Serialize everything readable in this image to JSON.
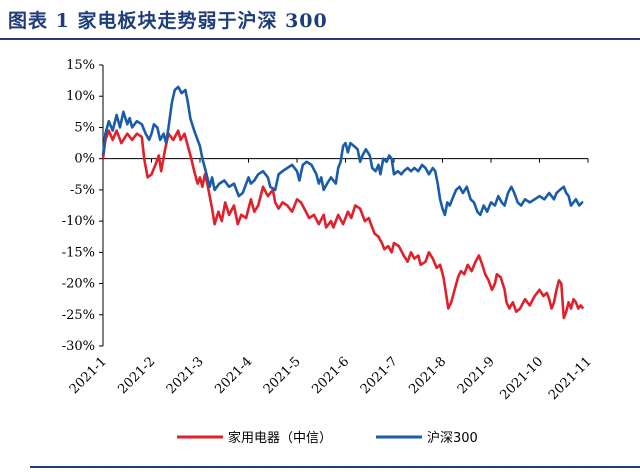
{
  "header": {
    "title": "图表 1  家电板块走势弱于沪深 300"
  },
  "chart_data": {
    "type": "line",
    "title": "图表 1  家电板块走势弱于沪深 300",
    "xlabel": "",
    "ylabel": "",
    "ylim": [
      -30,
      15
    ],
    "yticks": [
      "15%",
      "10%",
      "5%",
      "0%",
      "-5%",
      "-10%",
      "-15%",
      "-20%",
      "-25%",
      "-30%"
    ],
    "x_ticks": [
      "2021-1",
      "2021-2",
      "2021-3",
      "2021-4",
      "2021-5",
      "2021-6",
      "2021-7",
      "2021-8",
      "2021-9",
      "2021-10",
      "2021-11"
    ],
    "x_range": [
      0,
      10.2
    ],
    "legend_position": "bottom",
    "grid": false,
    "series": [
      {
        "name": "家用电器（中信）",
        "color": "#e0202a",
        "points": [
          [
            0.0,
            0
          ],
          [
            0.05,
            3
          ],
          [
            0.12,
            4.5
          ],
          [
            0.2,
            3
          ],
          [
            0.28,
            4.5
          ],
          [
            0.38,
            2.5
          ],
          [
            0.5,
            4
          ],
          [
            0.6,
            3
          ],
          [
            0.7,
            4
          ],
          [
            0.8,
            3.5
          ],
          [
            0.85,
            0
          ],
          [
            0.92,
            -3
          ],
          [
            1.0,
            -2.5
          ],
          [
            1.08,
            -1
          ],
          [
            1.15,
            0.5
          ],
          [
            1.2,
            -2
          ],
          [
            1.28,
            1.5
          ],
          [
            1.35,
            4
          ],
          [
            1.45,
            3
          ],
          [
            1.55,
            4.5
          ],
          [
            1.6,
            3
          ],
          [
            1.68,
            4
          ],
          [
            1.75,
            2
          ],
          [
            1.82,
            0
          ],
          [
            1.88,
            -2
          ],
          [
            1.95,
            -4
          ],
          [
            2.0,
            -3
          ],
          [
            2.05,
            -4.5
          ],
          [
            2.1,
            -2.5
          ],
          [
            2.15,
            -4
          ],
          [
            2.2,
            -6
          ],
          [
            2.25,
            -8
          ],
          [
            2.3,
            -10.5
          ],
          [
            2.38,
            -8.5
          ],
          [
            2.45,
            -10
          ],
          [
            2.52,
            -7
          ],
          [
            2.6,
            -9
          ],
          [
            2.7,
            -7.5
          ],
          [
            2.78,
            -10.5
          ],
          [
            2.85,
            -9
          ],
          [
            2.95,
            -9.5
          ],
          [
            3.05,
            -6.5
          ],
          [
            3.12,
            -8.5
          ],
          [
            3.2,
            -7.5
          ],
          [
            3.3,
            -4.5
          ],
          [
            3.4,
            -6
          ],
          [
            3.5,
            -5
          ],
          [
            3.55,
            -7
          ],
          [
            3.62,
            -8
          ],
          [
            3.7,
            -7
          ],
          [
            3.8,
            -7.5
          ],
          [
            3.9,
            -8.5
          ],
          [
            4.0,
            -6.5
          ],
          [
            4.08,
            -7
          ],
          [
            4.15,
            -8
          ],
          [
            4.25,
            -9.5
          ],
          [
            4.35,
            -9
          ],
          [
            4.45,
            -10.5
          ],
          [
            4.55,
            -9
          ],
          [
            4.6,
            -11
          ],
          [
            4.7,
            -10
          ],
          [
            4.75,
            -11
          ],
          [
            4.85,
            -9
          ],
          [
            4.95,
            -10.5
          ],
          [
            5.05,
            -8.5
          ],
          [
            5.12,
            -9.5
          ],
          [
            5.2,
            -7.5
          ],
          [
            5.3,
            -8
          ],
          [
            5.4,
            -10
          ],
          [
            5.48,
            -9.5
          ],
          [
            5.55,
            -11
          ],
          [
            5.6,
            -12
          ],
          [
            5.68,
            -12.5
          ],
          [
            5.75,
            -13.5
          ],
          [
            5.8,
            -14.5
          ],
          [
            5.88,
            -14
          ],
          [
            5.95,
            -15
          ],
          [
            6.0,
            -13.5
          ],
          [
            6.1,
            -14
          ],
          [
            6.2,
            -15.5
          ],
          [
            6.28,
            -16.5
          ],
          [
            6.35,
            -15
          ],
          [
            6.42,
            -16
          ],
          [
            6.5,
            -15.5
          ],
          [
            6.55,
            -17
          ],
          [
            6.65,
            -16.5
          ],
          [
            6.72,
            -15
          ],
          [
            6.8,
            -16
          ],
          [
            6.88,
            -17.5
          ],
          [
            6.95,
            -17
          ],
          [
            7.02,
            -19
          ],
          [
            7.08,
            -22
          ],
          [
            7.12,
            -24
          ],
          [
            7.18,
            -23
          ],
          [
            7.25,
            -21
          ],
          [
            7.32,
            -19
          ],
          [
            7.38,
            -18
          ],
          [
            7.45,
            -18.5
          ],
          [
            7.52,
            -17
          ],
          [
            7.6,
            -18
          ],
          [
            7.68,
            -16.5
          ],
          [
            7.75,
            -15.5
          ],
          [
            7.82,
            -17
          ],
          [
            7.88,
            -18.5
          ],
          [
            7.95,
            -19.5
          ],
          [
            8.02,
            -21
          ],
          [
            8.08,
            -20
          ],
          [
            8.12,
            -18.5
          ],
          [
            8.2,
            -19
          ],
          [
            8.28,
            -21
          ],
          [
            8.32,
            -23
          ],
          [
            8.38,
            -24
          ],
          [
            8.45,
            -23
          ],
          [
            8.52,
            -24.5
          ],
          [
            8.6,
            -24
          ],
          [
            8.7,
            -22.5
          ],
          [
            8.8,
            -23.5
          ],
          [
            8.9,
            -22
          ],
          [
            9.0,
            -21
          ],
          [
            9.08,
            -22
          ],
          [
            9.15,
            -21.5
          ],
          [
            9.2,
            -22.5
          ],
          [
            9.25,
            -24
          ],
          [
            9.3,
            -23
          ],
          [
            9.35,
            -21
          ],
          [
            9.4,
            -19.5
          ],
          [
            9.45,
            -20
          ],
          [
            9.5,
            -25.5
          ],
          [
            9.55,
            -24.5
          ],
          [
            9.6,
            -23
          ],
          [
            9.65,
            -24
          ],
          [
            9.7,
            -22.5
          ],
          [
            9.75,
            -23
          ],
          [
            9.8,
            -24
          ],
          [
            9.85,
            -23.5
          ],
          [
            9.9,
            -24
          ]
        ]
      },
      {
        "name": "沪深300",
        "color": "#1a5ca8",
        "points": [
          [
            0.0,
            0.5
          ],
          [
            0.05,
            4
          ],
          [
            0.12,
            6
          ],
          [
            0.2,
            4.5
          ],
          [
            0.28,
            7
          ],
          [
            0.35,
            5
          ],
          [
            0.42,
            7.5
          ],
          [
            0.5,
            5.5
          ],
          [
            0.55,
            6.5
          ],
          [
            0.6,
            5
          ],
          [
            0.7,
            6
          ],
          [
            0.8,
            5.5
          ],
          [
            0.88,
            4
          ],
          [
            0.95,
            3
          ],
          [
            1.0,
            4
          ],
          [
            1.05,
            5.5
          ],
          [
            1.12,
            5
          ],
          [
            1.18,
            3
          ],
          [
            1.25,
            4
          ],
          [
            1.3,
            2.5
          ],
          [
            1.35,
            5
          ],
          [
            1.42,
            9
          ],
          [
            1.48,
            11
          ],
          [
            1.55,
            11.5
          ],
          [
            1.62,
            10.5
          ],
          [
            1.7,
            11
          ],
          [
            1.75,
            9
          ],
          [
            1.8,
            6.5
          ],
          [
            1.88,
            4.5
          ],
          [
            1.95,
            3
          ],
          [
            2.0,
            2
          ],
          [
            2.05,
            0
          ],
          [
            2.1,
            -1.5
          ],
          [
            2.15,
            -3
          ],
          [
            2.2,
            -4.5
          ],
          [
            2.25,
            -3
          ],
          [
            2.3,
            -5
          ],
          [
            2.4,
            -4
          ],
          [
            2.5,
            -3.5
          ],
          [
            2.6,
            -4.5
          ],
          [
            2.7,
            -4
          ],
          [
            2.8,
            -6
          ],
          [
            2.88,
            -5.5
          ],
          [
            3.0,
            -3
          ],
          [
            3.05,
            -4
          ],
          [
            3.12,
            -3.5
          ],
          [
            3.2,
            -2.5
          ],
          [
            3.3,
            -2
          ],
          [
            3.4,
            -3
          ],
          [
            3.45,
            -4.5
          ],
          [
            3.55,
            -5
          ],
          [
            3.62,
            -2.5
          ],
          [
            3.7,
            -2
          ],
          [
            3.8,
            -1.5
          ],
          [
            3.9,
            -1
          ],
          [
            4.0,
            -2
          ],
          [
            4.05,
            -3.5
          ],
          [
            4.12,
            -1
          ],
          [
            4.2,
            -0.5
          ],
          [
            4.3,
            -1
          ],
          [
            4.4,
            -2.5
          ],
          [
            4.45,
            -4
          ],
          [
            4.5,
            -3
          ],
          [
            4.55,
            -5
          ],
          [
            4.62,
            -4
          ],
          [
            4.7,
            -3
          ],
          [
            4.8,
            -4
          ],
          [
            4.85,
            -1.5
          ],
          [
            4.9,
            -0.5
          ],
          [
            4.95,
            2
          ],
          [
            5.0,
            2.5
          ],
          [
            5.05,
            1
          ],
          [
            5.1,
            2.5
          ],
          [
            5.18,
            2
          ],
          [
            5.25,
            1.5
          ],
          [
            5.3,
            -0.5
          ],
          [
            5.35,
            0.5
          ],
          [
            5.42,
            1.5
          ],
          [
            5.5,
            0.5
          ],
          [
            5.55,
            -1.5
          ],
          [
            5.62,
            -2
          ],
          [
            5.68,
            -1
          ],
          [
            5.72,
            -2.5
          ],
          [
            5.78,
            0
          ],
          [
            5.85,
            -0.5
          ],
          [
            5.9,
            0.5
          ],
          [
            5.95,
            0
          ],
          [
            6.0,
            -2.5
          ],
          [
            6.08,
            -2
          ],
          [
            6.15,
            -2.5
          ],
          [
            6.2,
            -2
          ],
          [
            6.28,
            -1.5
          ],
          [
            6.35,
            -2
          ],
          [
            6.42,
            -1.5
          ],
          [
            6.5,
            -2
          ],
          [
            6.58,
            -1
          ],
          [
            6.65,
            -1.5
          ],
          [
            6.72,
            -2.5
          ],
          [
            6.8,
            -1.5
          ],
          [
            6.85,
            -2
          ],
          [
            6.9,
            -4
          ],
          [
            6.95,
            -6.5
          ],
          [
            7.0,
            -8
          ],
          [
            7.05,
            -9
          ],
          [
            7.1,
            -7
          ],
          [
            7.15,
            -7.5
          ],
          [
            7.2,
            -6.5
          ],
          [
            7.28,
            -5
          ],
          [
            7.35,
            -4.5
          ],
          [
            7.42,
            -5.5
          ],
          [
            7.5,
            -4.5
          ],
          [
            7.58,
            -6.5
          ],
          [
            7.65,
            -7
          ],
          [
            7.72,
            -8.5
          ],
          [
            7.78,
            -9
          ],
          [
            7.85,
            -7.5
          ],
          [
            7.92,
            -8.5
          ],
          [
            8.0,
            -7
          ],
          [
            8.08,
            -7.5
          ],
          [
            8.15,
            -6
          ],
          [
            8.22,
            -7
          ],
          [
            8.28,
            -7.5
          ],
          [
            8.35,
            -5.5
          ],
          [
            8.42,
            -4.5
          ],
          [
            8.48,
            -5.5
          ],
          [
            8.55,
            -7
          ],
          [
            8.62,
            -7.5
          ],
          [
            8.7,
            -6.5
          ],
          [
            8.8,
            -7
          ],
          [
            8.9,
            -6.5
          ],
          [
            9.0,
            -6
          ],
          [
            9.1,
            -6.5
          ],
          [
            9.2,
            -5.5
          ],
          [
            9.3,
            -6.5
          ],
          [
            9.35,
            -5.5
          ],
          [
            9.42,
            -5
          ],
          [
            9.5,
            -4.5
          ],
          [
            9.55,
            -5.5
          ],
          [
            9.6,
            -6
          ],
          [
            9.65,
            -7.5
          ],
          [
            9.7,
            -7
          ],
          [
            9.75,
            -6.5
          ],
          [
            9.82,
            -7.5
          ],
          [
            9.88,
            -7
          ],
          [
            9.9,
            -7
          ]
        ]
      }
    ]
  }
}
